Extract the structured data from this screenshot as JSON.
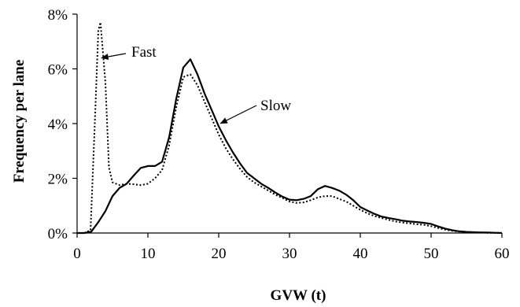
{
  "chart_data": {
    "type": "line",
    "xlabel": "GVW (t)",
    "ylabel": "Frequency per lane",
    "xlim": [
      0,
      60
    ],
    "ylim": [
      0,
      8
    ],
    "x_ticks": [
      "0",
      "10",
      "20",
      "30",
      "40",
      "50",
      "60"
    ],
    "y_ticks": [
      "0%",
      "2%",
      "4%",
      "6%",
      "8%"
    ],
    "grid": false,
    "legend": "none",
    "series": [
      {
        "name": "Fast",
        "style": "dotted",
        "x": [
          0,
          1,
          1.9,
          2.5,
          3,
          3.3,
          4,
          4.5,
          5,
          6,
          7,
          8,
          9,
          10,
          11,
          12,
          13,
          14,
          15,
          16,
          17,
          18,
          19,
          20,
          21,
          22,
          23,
          24,
          25,
          26,
          27,
          28,
          29,
          30,
          31,
          32,
          33,
          34,
          35,
          36,
          37,
          38,
          39,
          40,
          41,
          42,
          43,
          44,
          45,
          46,
          47,
          48,
          49,
          50,
          51,
          52,
          53,
          54,
          55,
          56,
          57,
          58,
          59,
          60
        ],
        "values": [
          0,
          0,
          0.1,
          4.0,
          7.4,
          7.7,
          5.5,
          2.4,
          1.85,
          1.75,
          1.8,
          1.78,
          1.75,
          1.8,
          2.0,
          2.3,
          3.2,
          4.6,
          5.7,
          5.8,
          5.4,
          4.8,
          4.2,
          3.6,
          3.1,
          2.7,
          2.35,
          2.05,
          1.85,
          1.7,
          1.55,
          1.4,
          1.28,
          1.15,
          1.1,
          1.12,
          1.2,
          1.3,
          1.35,
          1.35,
          1.25,
          1.15,
          1.0,
          0.85,
          0.72,
          0.62,
          0.55,
          0.48,
          0.42,
          0.38,
          0.35,
          0.32,
          0.3,
          0.25,
          0.18,
          0.12,
          0.08,
          0.05,
          0.03,
          0.02,
          0.02,
          0.01,
          0.01,
          0
        ]
      },
      {
        "name": "Slow",
        "style": "solid",
        "x": [
          0,
          1,
          2,
          3,
          4,
          5,
          6,
          7,
          8,
          9,
          10,
          11,
          12,
          13,
          14,
          15,
          16,
          17,
          18,
          19,
          20,
          21,
          22,
          23,
          24,
          25,
          26,
          27,
          28,
          29,
          30,
          31,
          32,
          33,
          34,
          35,
          36,
          37,
          38,
          39,
          40,
          41,
          42,
          43,
          44,
          45,
          46,
          47,
          48,
          49,
          50,
          51,
          52,
          53,
          54,
          55,
          56,
          57,
          58,
          59,
          60
        ],
        "values": [
          0,
          0,
          0.05,
          0.4,
          0.8,
          1.35,
          1.65,
          1.8,
          2.1,
          2.38,
          2.45,
          2.45,
          2.6,
          3.5,
          4.9,
          6.05,
          6.35,
          5.8,
          5.1,
          4.5,
          3.9,
          3.4,
          2.95,
          2.55,
          2.2,
          2.0,
          1.8,
          1.65,
          1.48,
          1.33,
          1.22,
          1.2,
          1.25,
          1.35,
          1.6,
          1.72,
          1.65,
          1.55,
          1.4,
          1.2,
          0.95,
          0.82,
          0.7,
          0.6,
          0.55,
          0.5,
          0.45,
          0.42,
          0.4,
          0.37,
          0.33,
          0.24,
          0.16,
          0.1,
          0.06,
          0.04,
          0.03,
          0.02,
          0.02,
          0.01,
          0
        ]
      }
    ],
    "annotations": [
      {
        "text": "Fast",
        "target_series": "Fast",
        "arrow_to": [
          3.4,
          6.4
        ]
      },
      {
        "text": "Slow",
        "target_series": "Slow",
        "arrow_to": [
          20.2,
          4.0
        ]
      }
    ]
  }
}
